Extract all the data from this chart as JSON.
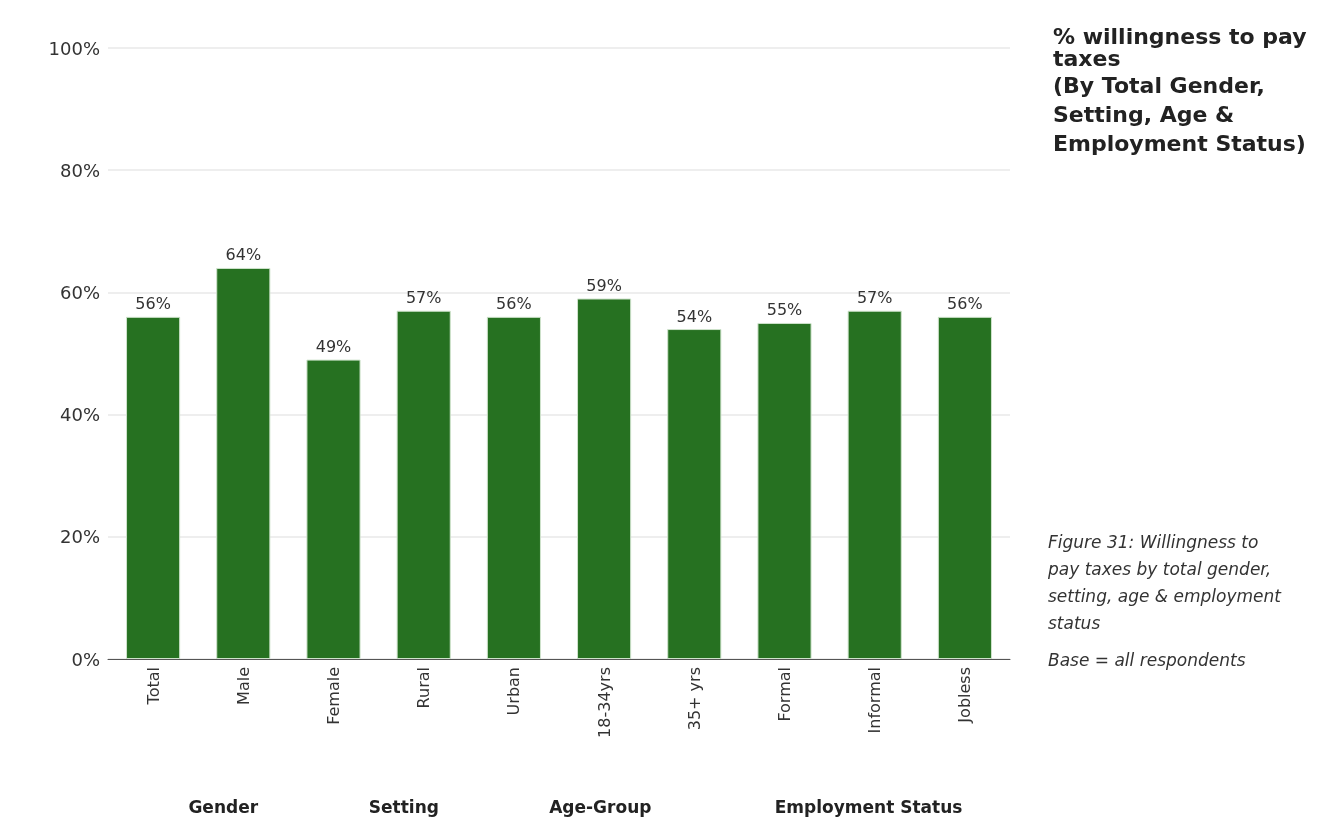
{
  "chart_data": {
    "type": "bar",
    "title": "% willingness to pay taxes",
    "subtitle": "(By Total Gender, Setting, Age & Employment Status)",
    "categories": [
      "Total",
      "Male",
      "Female",
      "Rural",
      "Urban",
      "18-34yrs",
      "35+ yrs",
      "Formal",
      "Informal",
      "Jobless"
    ],
    "values": [
      56,
      64,
      49,
      57,
      56,
      59,
      54,
      55,
      57,
      56
    ],
    "color": "#267121",
    "ylim": [
      0,
      100
    ],
    "yticks": [
      {
        "value": 0,
        "label": "0%"
      },
      {
        "value": 20,
        "label": "20%"
      },
      {
        "value": 40,
        "label": "40%"
      },
      {
        "value": 60,
        "label": "60%"
      },
      {
        "value": 80,
        "label": "80%"
      },
      {
        "value": 100,
        "label": "100%"
      }
    ],
    "grid": "y",
    "value_labels": [
      "56%",
      "64%",
      "49%",
      "57%",
      "56%",
      "59%",
      "54%",
      "55%",
      "57%",
      "56%"
    ],
    "annotations": [
      "Gender",
      "Setting",
      "Age-Group",
      "Employment Status",
      "Figure 31: Willingness to pay taxes by total gender, setting, age & employment status",
      "Base = all respondents"
    ]
  }
}
